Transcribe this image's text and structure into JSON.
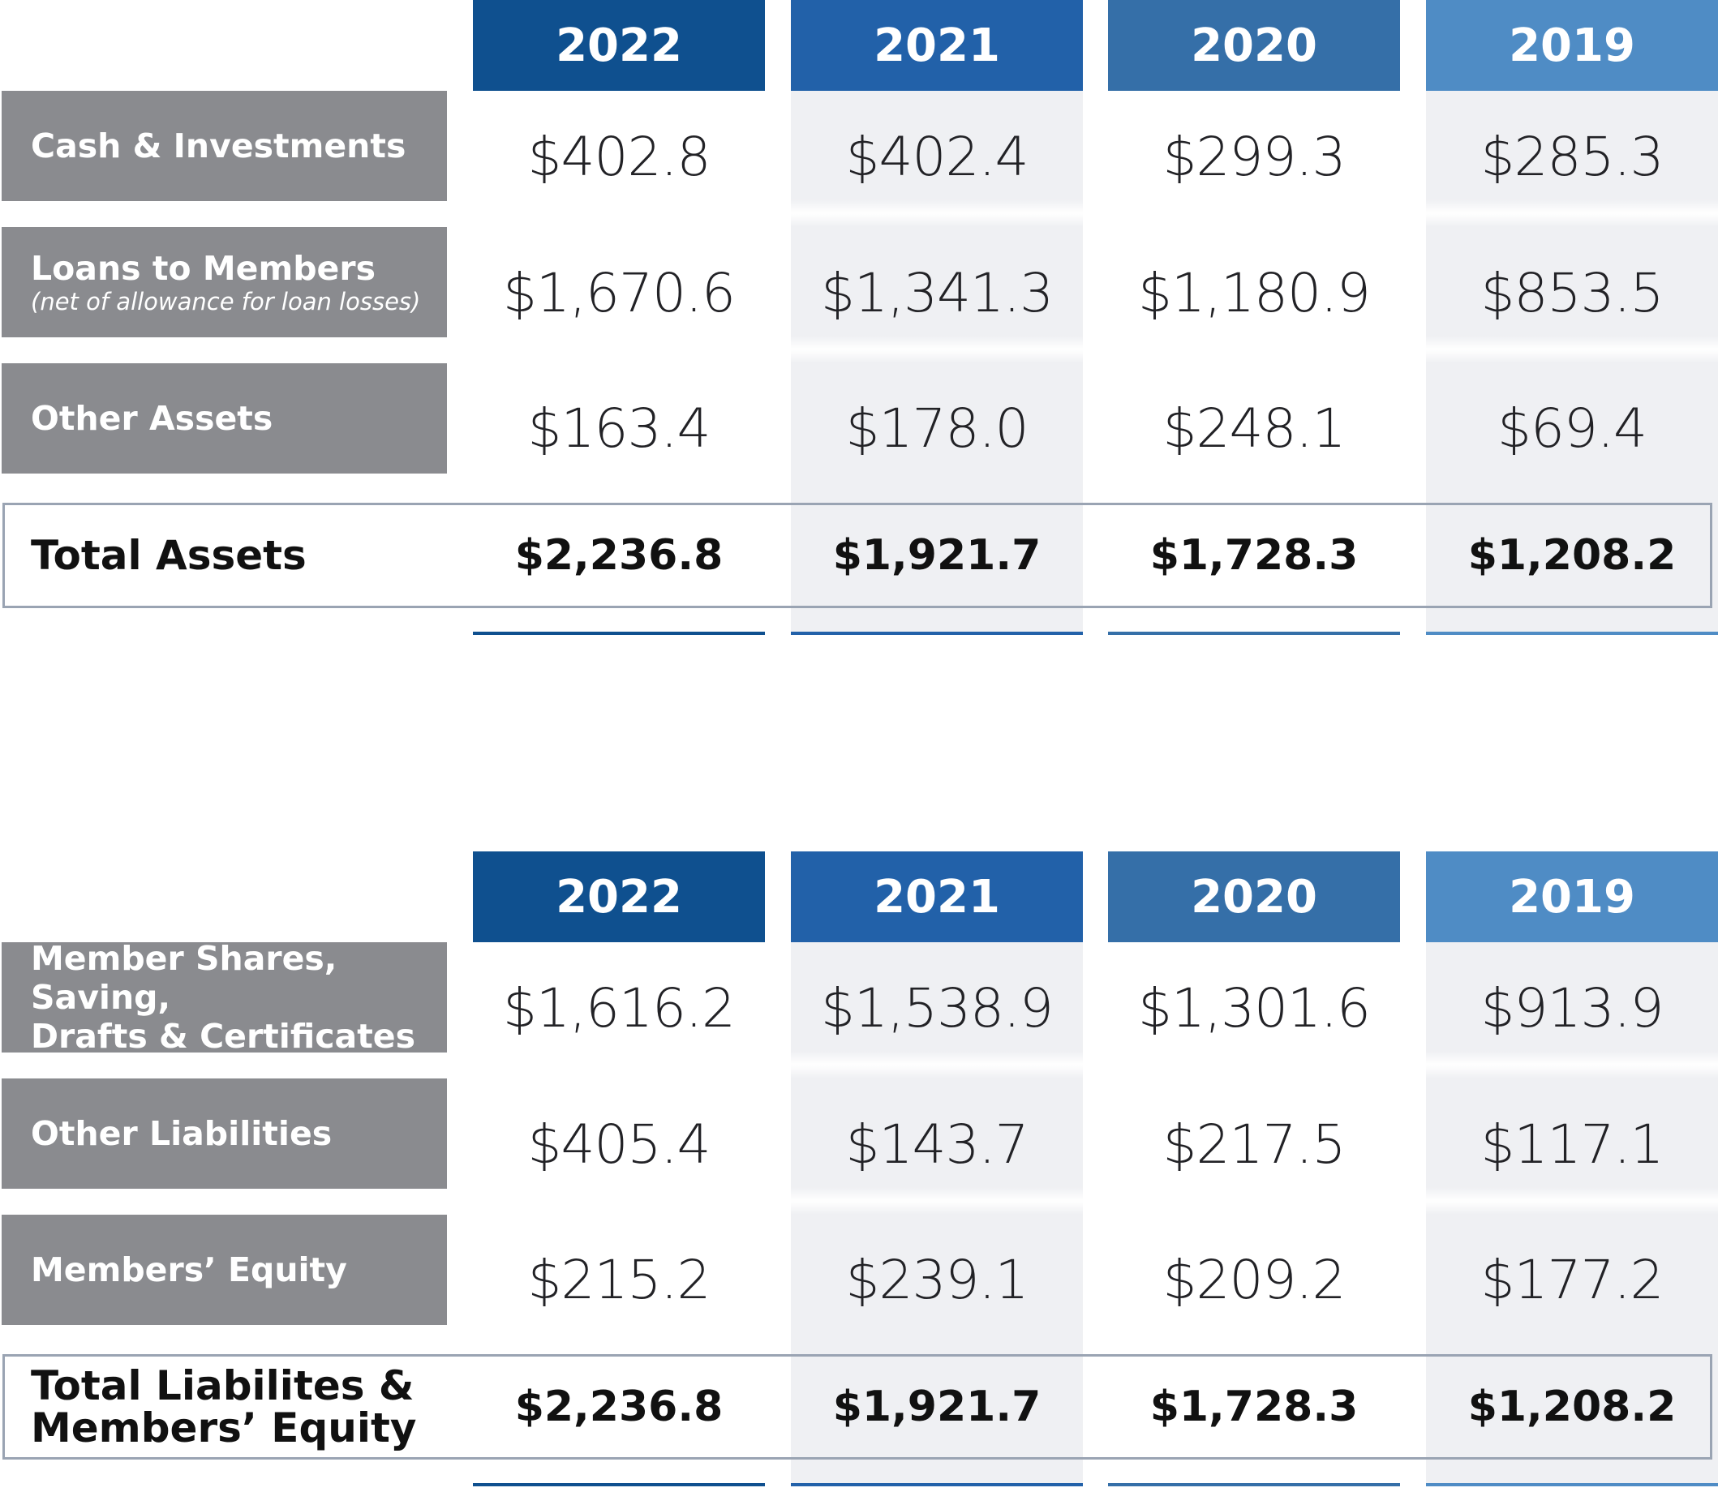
{
  "colors": {
    "header_2022": "#0f508f",
    "header_2021": "#2261a9",
    "header_2020": "#356fa8",
    "header_2019": "#4f8cc5",
    "label_bg": "#8a8b8f",
    "alt_column_bg": "#eff0f3",
    "total_border": "#9aa4b3"
  },
  "assets": {
    "headers": [
      "2022",
      "2021",
      "2020",
      "2019"
    ],
    "rows": [
      {
        "label": "Cash & Investments",
        "sublabel": "",
        "values": [
          "$402.8",
          "$402.4",
          "$299.3",
          "$285.3"
        ]
      },
      {
        "label": "Loans to Members",
        "sublabel": "(net of allowance for loan losses)",
        "values": [
          "$1,670.6",
          "$1,341.3",
          "$1,180.9",
          "$853.5"
        ]
      },
      {
        "label": "Other Assets",
        "sublabel": "",
        "values": [
          "$163.4",
          "$178.0",
          "$248.1",
          "$69.4"
        ]
      }
    ],
    "total": {
      "label_line1": "Total Assets",
      "label_line2": "",
      "values": [
        "$2,236.8",
        "$1,921.7",
        "$1,728.3",
        "$1,208.2"
      ]
    }
  },
  "liabilities": {
    "headers": [
      "2022",
      "2021",
      "2020",
      "2019"
    ],
    "rows": [
      {
        "label": "Member Shares, Saving,",
        "sublabel": "Drafts & Certificates",
        "values": [
          "$1,616.2",
          "$1,538.9",
          "$1,301.6",
          "$913.9"
        ]
      },
      {
        "label": "Other Liabilities",
        "sublabel": "",
        "values": [
          "$405.4",
          "$143.7",
          "$217.5",
          "$117.1"
        ]
      },
      {
        "label": "Members’ Equity",
        "sublabel": "",
        "values": [
          "$215.2",
          "$239.1",
          "$209.2",
          "$177.2"
        ]
      }
    ],
    "total": {
      "label_line1": "Total Liabilites &",
      "label_line2": "Members’ Equity",
      "values": [
        "$2,236.8",
        "$1,921.7",
        "$1,728.3",
        "$1,208.2"
      ]
    }
  }
}
